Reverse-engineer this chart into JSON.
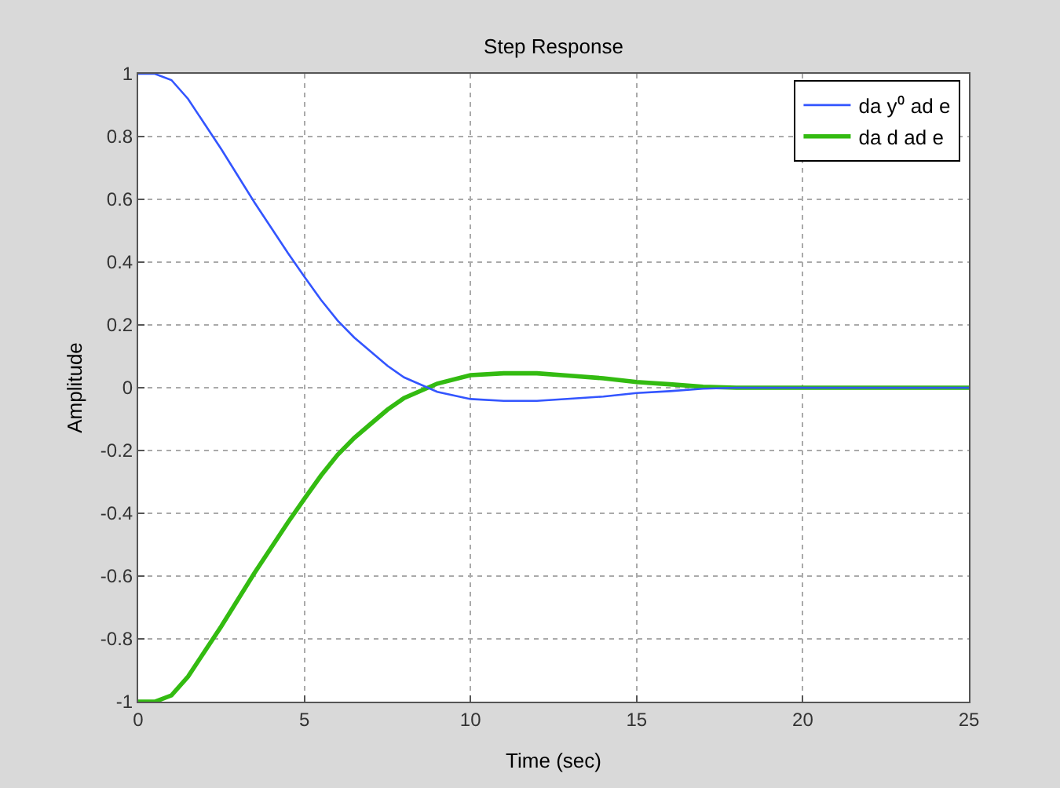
{
  "chart_data": {
    "type": "line",
    "title": "Step Response",
    "xlabel": "Time (sec)",
    "ylabel": "Amplitude",
    "x": [
      0,
      0.5,
      1,
      1.5,
      2,
      2.5,
      3,
      3.5,
      4,
      4.5,
      5,
      5.5,
      6,
      6.5,
      7,
      7.5,
      8,
      8.5,
      9,
      10,
      11,
      12,
      13,
      14,
      15,
      16,
      17,
      18,
      19,
      20,
      25
    ],
    "series": [
      {
        "name": "da y⁰ ad e",
        "color": "#3355ff",
        "values": [
          1,
          1,
          0.98,
          0.92,
          0.84,
          0.76,
          0.675,
          0.59,
          0.51,
          0.43,
          0.354,
          0.28,
          0.214,
          0.16,
          0.115,
          0.07,
          0.033,
          0.01,
          -0.013,
          -0.036,
          -0.042,
          -0.042,
          -0.035,
          -0.028,
          -0.017,
          -0.011,
          -0.003,
          0,
          0,
          0,
          0
        ]
      },
      {
        "name": "da d ad e",
        "color": "#33bb11",
        "values": [
          -1,
          -1,
          -0.98,
          -0.92,
          -0.84,
          -0.76,
          -0.675,
          -0.59,
          -0.51,
          -0.43,
          -0.354,
          -0.28,
          -0.214,
          -0.16,
          -0.115,
          -0.07,
          -0.033,
          -0.01,
          0.013,
          0.04,
          0.046,
          0.046,
          0.038,
          0.03,
          0.018,
          0.011,
          0.003,
          0,
          0,
          0,
          0
        ]
      }
    ],
    "xlim": [
      0,
      25
    ],
    "xticks": [
      0,
      5,
      10,
      15,
      20,
      25
    ],
    "ylim": [
      -1,
      1
    ],
    "yticks": [
      -1,
      -0.8,
      -0.6,
      -0.4,
      -0.2,
      0,
      0.2,
      0.4,
      0.6,
      0.8,
      1
    ],
    "grid": true,
    "legend": "top right",
    "line_style": "solid",
    "marker": "none"
  }
}
